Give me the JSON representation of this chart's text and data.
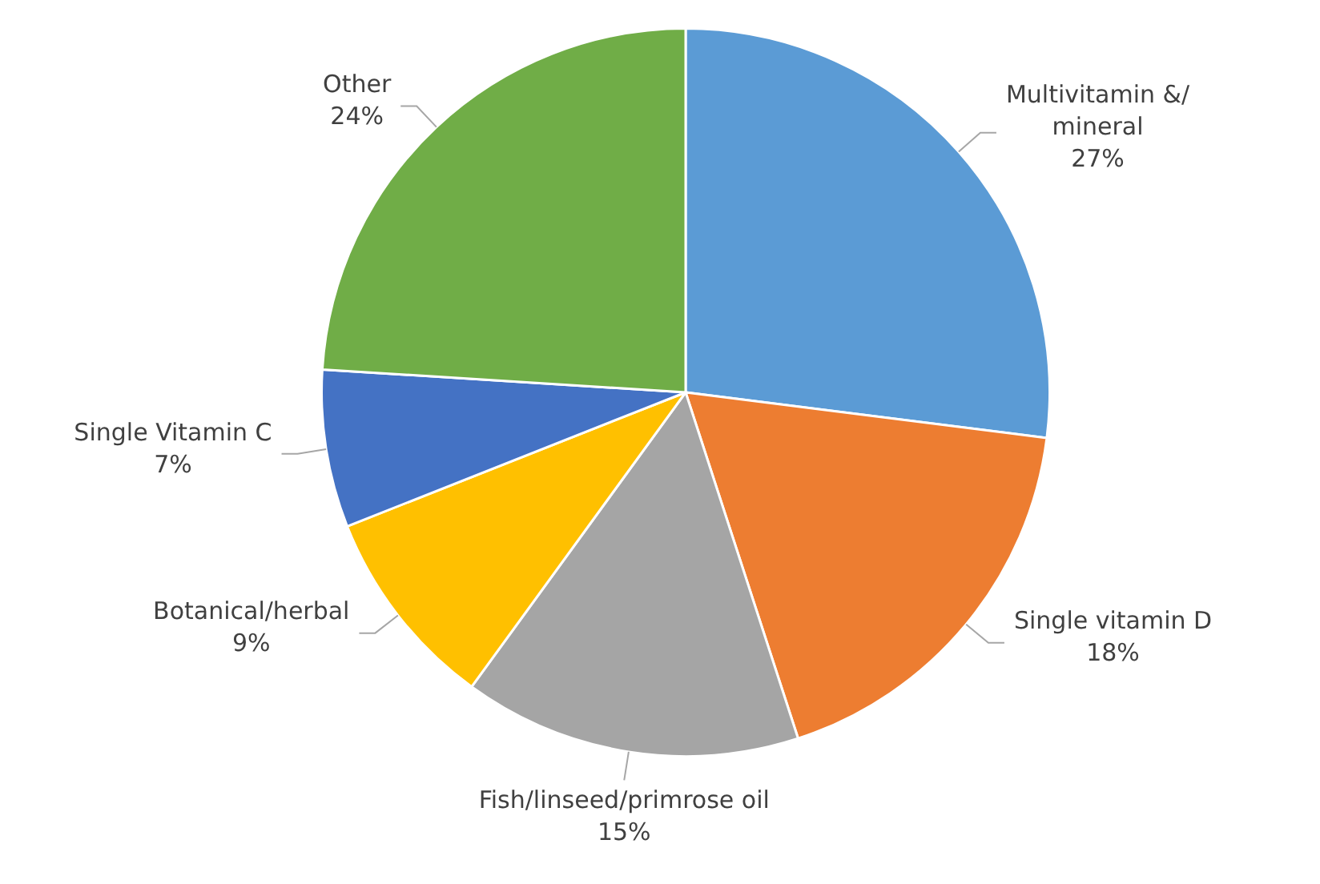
{
  "chart_data": {
    "type": "pie",
    "categories": [
      "Multivitamin &/ mineral",
      "Single vitamin D",
      "Fish/linseed/primrose oil",
      "Botanical/herbal",
      "Single Vitamin C",
      "Other"
    ],
    "values": [
      27,
      18,
      15,
      9,
      7,
      24
    ],
    "value_labels": [
      "27%",
      "18%",
      "15%",
      "9%",
      "7%",
      "24%"
    ],
    "colors": [
      "#5b9bd5",
      "#ed7d31",
      "#a5a5a5",
      "#ffc000",
      "#4472c4",
      "#70ad47"
    ],
    "legend": false
  }
}
